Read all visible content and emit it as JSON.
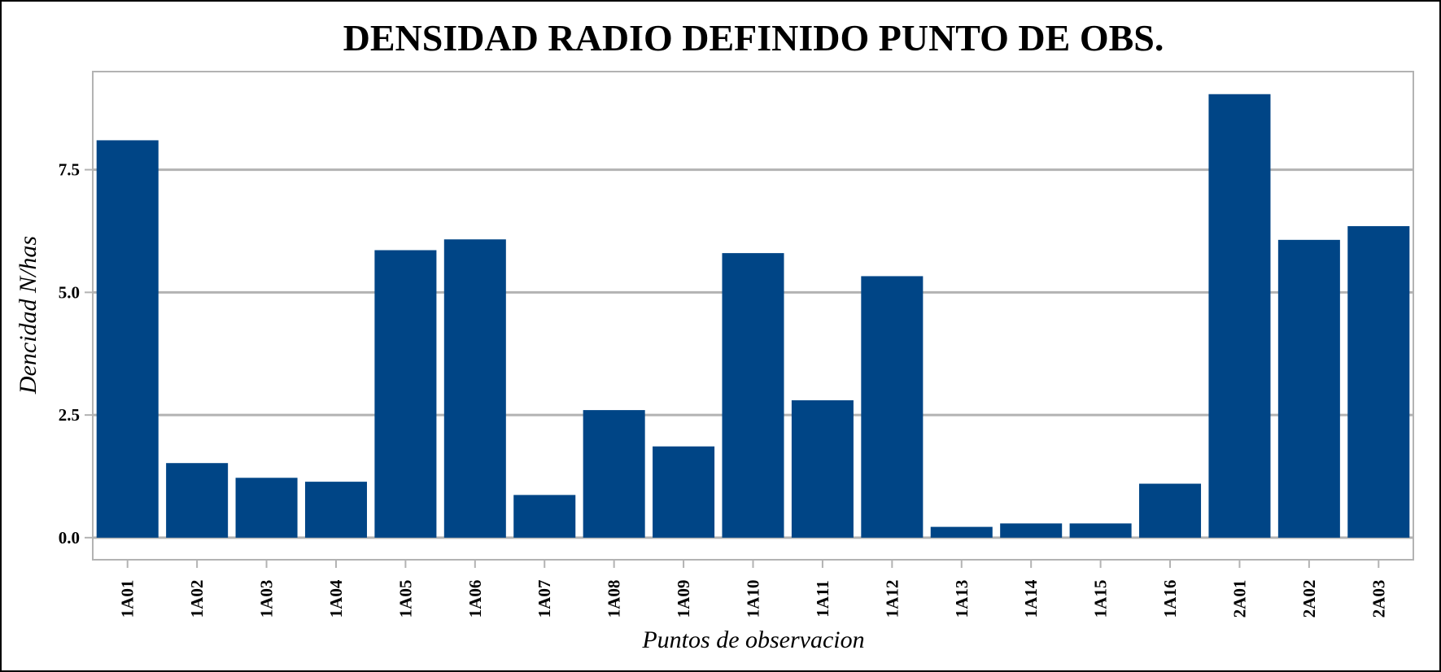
{
  "chart_data": {
    "type": "bar",
    "title": "DENSIDAD RADIO DEFINIDO PUNTO DE OBS.",
    "xlabel": "Puntos de observacion",
    "ylabel": "Dencidad N/has",
    "categories": [
      "1A01",
      "1A02",
      "1A03",
      "1A04",
      "1A05",
      "1A06",
      "1A07",
      "1A08",
      "1A09",
      "1A10",
      "1A11",
      "1A12",
      "1A13",
      "1A14",
      "1A15",
      "1A16",
      "2A01",
      "2A02",
      "2A03"
    ],
    "values": [
      8.1,
      1.52,
      1.22,
      1.14,
      5.86,
      6.08,
      0.87,
      2.6,
      1.86,
      5.8,
      2.8,
      5.33,
      0.22,
      0.29,
      0.29,
      1.1,
      9.04,
      6.07,
      6.35
    ],
    "yticks": [
      "0.0",
      "2.5",
      "5.0",
      "7.5"
    ],
    "ytick_values": [
      0,
      2.5,
      5,
      7.5
    ],
    "ylim": [
      -0.45,
      9.5
    ],
    "grid": true,
    "legend": "none",
    "colors": {
      "bar": "#004586",
      "grid": "#b3b3b3",
      "panel_border": "#b3b3b3",
      "frame": "#000000"
    }
  }
}
